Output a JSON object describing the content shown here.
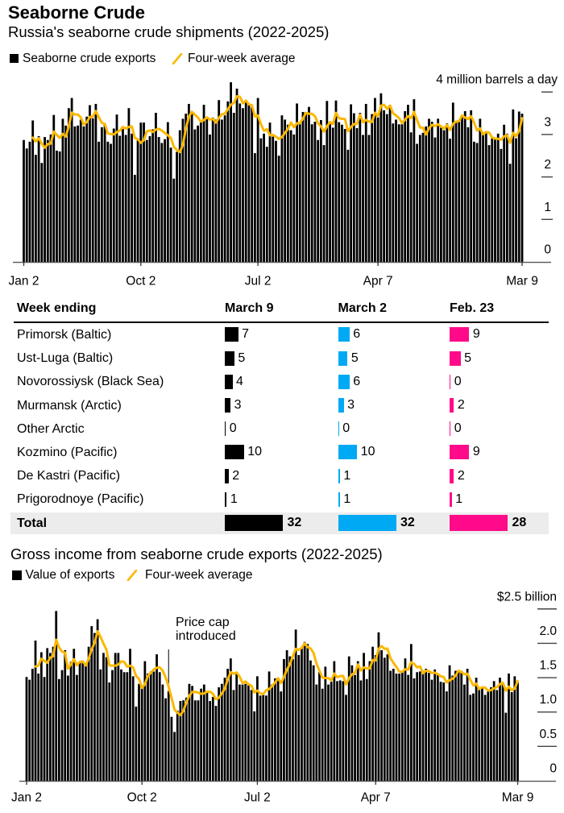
{
  "header": {
    "title": "Seaborne Crude"
  },
  "table": {
    "header": {
      "label": "Week ending",
      "columns": [
        "March 9",
        "March 2",
        "Feb. 23"
      ]
    },
    "column_colors": [
      "#000000",
      "#00a9f4",
      "#ff0b8a"
    ],
    "rows": [
      {
        "port": "Primorsk (Baltic)",
        "values": [
          7,
          6,
          9
        ]
      },
      {
        "port": "Ust-Luga (Baltic)",
        "values": [
          5,
          5,
          5
        ]
      },
      {
        "port": "Novorossiysk (Black Sea)",
        "values": [
          4,
          6,
          0
        ]
      },
      {
        "port": "Murmansk (Arctic)",
        "values": [
          3,
          3,
          2
        ]
      },
      {
        "port": "Other Arctic",
        "values": [
          0,
          0,
          0
        ]
      },
      {
        "port": "Kozmino (Pacific)",
        "values": [
          10,
          10,
          9
        ]
      },
      {
        "port": "De Kastri (Pacific)",
        "values": [
          2,
          1,
          2
        ]
      },
      {
        "port": "Prigorodnoye (Pacific)",
        "values": [
          1,
          1,
          1
        ]
      }
    ],
    "total": {
      "label": "Total",
      "values": [
        32,
        32,
        28
      ]
    }
  },
  "chart_data": [
    {
      "type": "bar",
      "title": "Russia's seaborne crude shipments (2022-2025)",
      "xlabel": "",
      "ylabel": "million barrels a day",
      "ylim": [
        0,
        4
      ],
      "yticks": [
        {
          "value": 0,
          "label": "0"
        },
        {
          "value": 1,
          "label": "1"
        },
        {
          "value": 2,
          "label": "2"
        },
        {
          "value": 3,
          "label": "3"
        },
        {
          "value": 4,
          "label": "4 million barrels a day"
        }
      ],
      "x_unit": "week",
      "x_ticks": [
        {
          "index": 0,
          "label": "Jan 2"
        },
        {
          "index": 39,
          "label": "Oct 2"
        },
        {
          "index": 78,
          "label": "Jul 2"
        },
        {
          "index": 118,
          "label": "Apr 7"
        },
        {
          "index": 166,
          "label": "Mar 9"
        }
      ],
      "grid": false,
      "legend": "top-left",
      "series": [
        {
          "name": "Seaborne crude exports",
          "type": "bar",
          "color": "#000000",
          "values": [
            2.87,
            2.67,
            2.83,
            3.33,
            2.52,
            2.96,
            2.33,
            2.94,
            2.87,
            3.0,
            3.46,
            2.62,
            2.6,
            3.37,
            3.21,
            3.62,
            3.86,
            3.19,
            3.21,
            3.35,
            3.19,
            3.42,
            3.69,
            3.38,
            3.72,
            2.83,
            3.17,
            3.26,
            2.83,
            2.78,
            3.14,
            3.47,
            2.97,
            3.13,
            2.99,
            3.62,
            3.02,
            2.05,
            2.86,
            3.28,
            3.28,
            2.87,
            2.96,
            3.12,
            3.51,
            2.94,
            2.8,
            2.89,
            3.29,
            2.69,
            1.96,
            2.59,
            3.1,
            3.37,
            3.49,
            3.72,
            3.55,
            3.12,
            3.21,
            3.33,
            3.7,
            3.37,
            3.0,
            3.4,
            3.35,
            3.81,
            3.35,
            3.45,
            3.78,
            4.23,
            3.51,
            4.08,
            3.73,
            3.62,
            3.76,
            3.73,
            3.64,
            2.56,
            3.86,
            2.91,
            3.02,
            2.71,
            3.28,
            2.95,
            2.85,
            2.5,
            3.45,
            3.35,
            3.23,
            3.1,
            3.0,
            3.73,
            3.24,
            3.53,
            3.53,
            3.65,
            3.24,
            3.3,
            2.87,
            3.34,
            2.75,
            3.79,
            3.29,
            3.16,
            3.8,
            3.29,
            3.23,
            3.13,
            2.64,
            3.71,
            3.5,
            3.15,
            3.51,
            2.99,
            3.72,
            2.99,
            3.48,
            3.86,
            3.4,
            3.97,
            3.57,
            3.48,
            3.7,
            3.26,
            3.35,
            3.24,
            3.24,
            3.55,
            3.7,
            3.05,
            3.83,
            2.78,
            2.99,
            3.04,
            3.19,
            3.37,
            3.3,
            2.93,
            3.37,
            3.16,
            3.1,
            3.26,
            2.9,
            3.75,
            3.3,
            3.31,
            3.43,
            3.55,
            3.17,
            3.57,
            2.83,
            2.8,
            3.37,
            3.02,
            3.04,
            2.75,
            2.91,
            2.91,
            3.02,
            2.66,
            3.23,
            3.02,
            2.31,
            3.59,
            2.91,
            3.54,
            3.49
          ]
        },
        {
          "name": "Four-week average",
          "type": "line",
          "color": "#fbb800",
          "derived": "rolling_mean",
          "window": 4
        }
      ]
    },
    {
      "type": "bar",
      "title": "Gross income from seaborne crude exports (2022-2025)",
      "xlabel": "",
      "ylabel": "$ billion",
      "ylim": [
        0,
        2.5
      ],
      "yticks": [
        {
          "value": 0,
          "label": "0"
        },
        {
          "value": 0.5,
          "label": "0.5"
        },
        {
          "value": 1.0,
          "label": "1.0"
        },
        {
          "value": 1.5,
          "label": "1.5"
        },
        {
          "value": 2.0,
          "label": "2.0"
        },
        {
          "value": 2.5,
          "label": "$2.5 billion"
        }
      ],
      "x_unit": "week",
      "x_ticks": [
        {
          "index": 0,
          "label": "Jan 2"
        },
        {
          "index": 39,
          "label": "Oct 2"
        },
        {
          "index": 78,
          "label": "Jul 2"
        },
        {
          "index": 118,
          "label": "Apr 7"
        },
        {
          "index": 166,
          "label": "Mar 9"
        }
      ],
      "grid": false,
      "legend": "top-left",
      "annotations": [
        {
          "index": 48,
          "lines": [
            "Price cap",
            "introduced"
          ]
        }
      ],
      "series": [
        {
          "name": "Value of exports",
          "type": "bar",
          "color": "#000000",
          "values": [
            1.51,
            1.47,
            1.63,
            2.04,
            1.56,
            1.87,
            1.51,
            1.93,
            1.86,
            1.95,
            2.47,
            1.48,
            1.61,
            1.9,
            1.53,
            1.73,
            1.92,
            1.54,
            1.73,
            1.75,
            1.69,
            1.95,
            2.25,
            2.15,
            2.35,
            1.62,
            1.86,
            1.8,
            1.43,
            1.61,
            1.86,
            1.86,
            1.62,
            1.58,
            1.58,
            1.92,
            1.52,
            1.08,
            1.41,
            1.39,
            1.74,
            1.56,
            1.59,
            1.59,
            1.84,
            1.58,
            1.4,
            1.2,
            1.3,
            0.93,
            0.71,
            1.02,
            1.16,
            1.17,
            1.21,
            1.41,
            1.38,
            1.17,
            1.17,
            1.34,
            1.4,
            1.28,
            1.16,
            1.22,
            1.09,
            1.36,
            1.41,
            1.5,
            1.63,
            1.78,
            1.32,
            1.57,
            1.4,
            1.4,
            1.41,
            1.4,
            1.32,
            1.01,
            1.52,
            1.24,
            1.27,
            1.24,
            1.59,
            1.4,
            1.49,
            1.49,
            1.3,
            1.77,
            1.9,
            1.81,
            1.77,
            2.2,
            1.83,
            1.94,
            2.02,
            1.99,
            1.75,
            1.68,
            1.4,
            1.58,
            1.34,
            1.66,
            1.4,
            1.44,
            1.74,
            1.45,
            1.46,
            1.45,
            1.25,
            1.81,
            1.68,
            1.54,
            1.74,
            1.46,
            1.86,
            1.48,
            1.74,
            1.95,
            1.83,
            2.16,
            1.9,
            1.79,
            1.84,
            1.6,
            1.63,
            1.56,
            1.56,
            1.59,
            1.78,
            1.54,
            1.99,
            1.49,
            1.58,
            1.59,
            1.6,
            1.63,
            1.57,
            1.47,
            1.62,
            1.55,
            1.44,
            1.43,
            1.3,
            1.68,
            1.53,
            1.6,
            1.6,
            1.6,
            1.4,
            1.63,
            1.25,
            1.27,
            1.5,
            1.32,
            1.35,
            1.25,
            1.32,
            1.36,
            1.45,
            1.32,
            1.5,
            1.43,
            0.99,
            1.56,
            1.29,
            1.52,
            1.43
          ]
        },
        {
          "name": "Four-week average",
          "type": "line",
          "color": "#fbb800",
          "derived": "rolling_mean",
          "window": 4
        }
      ]
    }
  ]
}
